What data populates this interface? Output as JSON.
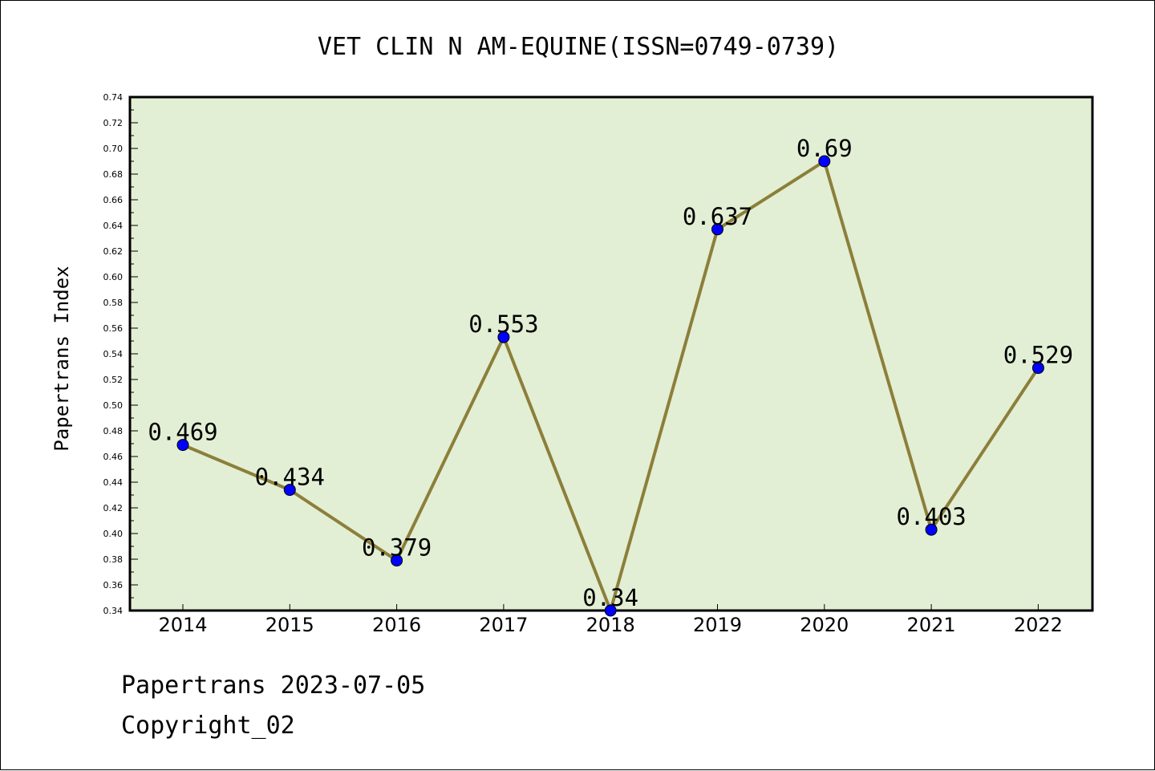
{
  "chart_data": {
    "type": "line",
    "title": "VET CLIN N AM-EQUINE(ISSN=0749-0739)",
    "xlabel": "",
    "ylabel": "Papertrans Index",
    "categories": [
      "2014",
      "2015",
      "2016",
      "2017",
      "2018",
      "2019",
      "2020",
      "2021",
      "2022"
    ],
    "values": [
      0.469,
      0.434,
      0.379,
      0.553,
      0.34,
      0.637,
      0.69,
      0.403,
      0.529
    ],
    "data_labels": [
      "0.469",
      "0.434",
      "0.379",
      "0.553",
      "0.34",
      "0.637",
      "0.69",
      "0.403",
      "0.529"
    ],
    "ylim": [
      0.34,
      0.74
    ],
    "yticks": [
      "0.34",
      "0.36",
      "0.38",
      "0.40",
      "0.42",
      "0.44",
      "0.46",
      "0.48",
      "0.50",
      "0.52",
      "0.54",
      "0.56",
      "0.58",
      "0.60",
      "0.62",
      "0.64",
      "0.66",
      "0.68",
      "0.70",
      "0.72",
      "0.74"
    ],
    "grid": false,
    "colors": {
      "plot_background": "#e2efd5",
      "line": "#8c7f3a",
      "marker": "#0000ff"
    }
  },
  "footer": {
    "date_line": "Papertrans 2023-07-05",
    "copyright": "Copyright_02"
  }
}
